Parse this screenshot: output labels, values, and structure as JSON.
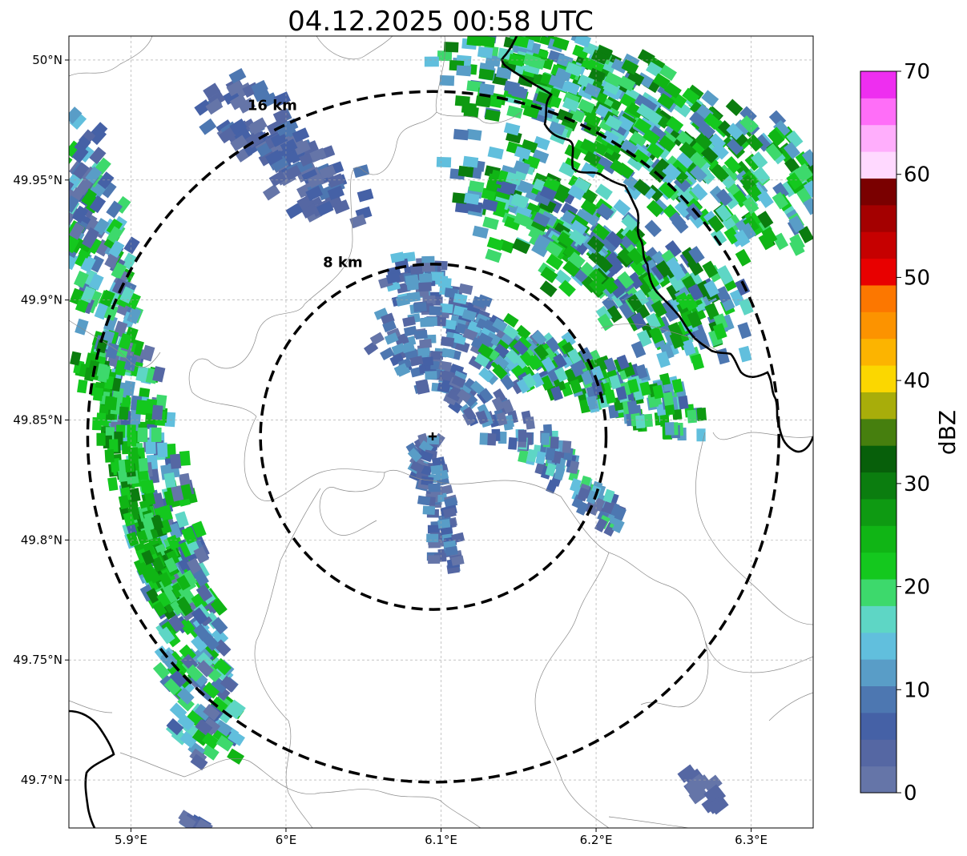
{
  "title": "04.12.2025 00:58 UTC",
  "map": {
    "lon_range": [
      5.86,
      6.34
    ],
    "lat_range": [
      49.68,
      50.01
    ],
    "x_ticks": [
      {
        "value": 5.9,
        "label": "5.9°E"
      },
      {
        "value": 6.0,
        "label": "6°E"
      },
      {
        "value": 6.1,
        "label": "6.1°E"
      },
      {
        "value": 6.2,
        "label": "6.2°E"
      },
      {
        "value": 6.3,
        "label": "6.3°E"
      }
    ],
    "y_ticks": [
      {
        "value": 50.0,
        "label": "50°N"
      },
      {
        "value": 49.95,
        "label": "49.95°N"
      },
      {
        "value": 49.9,
        "label": "49.9°N"
      },
      {
        "value": 49.85,
        "label": "49.85°N"
      },
      {
        "value": 49.8,
        "label": "49.8°N"
      },
      {
        "value": 49.75,
        "label": "49.75°N"
      },
      {
        "value": 49.7,
        "label": "49.7°N"
      }
    ],
    "radar_center": {
      "lon": 6.095,
      "lat": 49.843
    },
    "range_rings": [
      {
        "radius_km": 8,
        "label": "8 km"
      },
      {
        "radius_km": 16,
        "label": "16 km"
      }
    ],
    "grid": true
  },
  "colorbar": {
    "label": "dBZ",
    "vmin": 0,
    "vmax": 70,
    "ticks": [
      {
        "value": 0,
        "label": "0"
      },
      {
        "value": 10,
        "label": "10"
      },
      {
        "value": 20,
        "label": "20"
      },
      {
        "value": 30,
        "label": "30"
      },
      {
        "value": 40,
        "label": "40"
      },
      {
        "value": 50,
        "label": "50"
      },
      {
        "value": 60,
        "label": "60"
      },
      {
        "value": 70,
        "label": "70"
      }
    ],
    "colors": [
      "#6575a8",
      "#5567a3",
      "#4561a6",
      "#4d77b1",
      "#599dc7",
      "#61bfdd",
      "#5ed6c5",
      "#3dd96c",
      "#14c81e",
      "#10b515",
      "#0e9a12",
      "#0b7d0f",
      "#075f0a",
      "#467f0e",
      "#a8ad0a",
      "#fbd700",
      "#fcb400",
      "#fc9300",
      "#fc7700",
      "#e80000",
      "#c60000",
      "#a40000",
      "#7a0000",
      "#ffd9ff",
      "#ffaefc",
      "#ff6ef8",
      "#ee2ef0"
    ]
  }
}
